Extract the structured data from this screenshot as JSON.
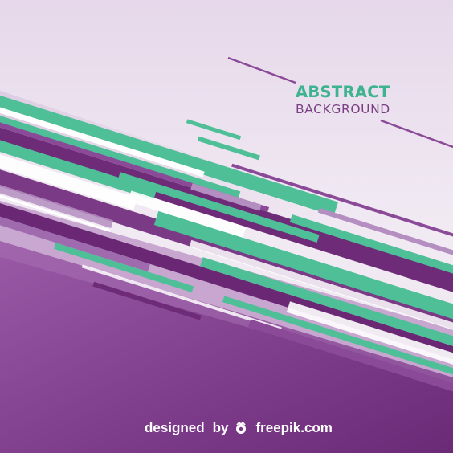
{
  "heading": {
    "title": "ABSTRACT",
    "subtitle": "BACKGROUND"
  },
  "credit": {
    "prefix": "designed",
    "by": "by",
    "brand": "freepik.com",
    "icon": "freepik-logo-icon"
  },
  "colors": {
    "background_light": "#efe6f1",
    "purple_dark": "#6e2c78",
    "purple_mid": "#8a4a98",
    "purple_light": "#b48ec0",
    "green": "#4fbf98",
    "white": "#ffffff",
    "title_green": "#3eb38f",
    "subtitle_purple": "#7a3f82"
  }
}
